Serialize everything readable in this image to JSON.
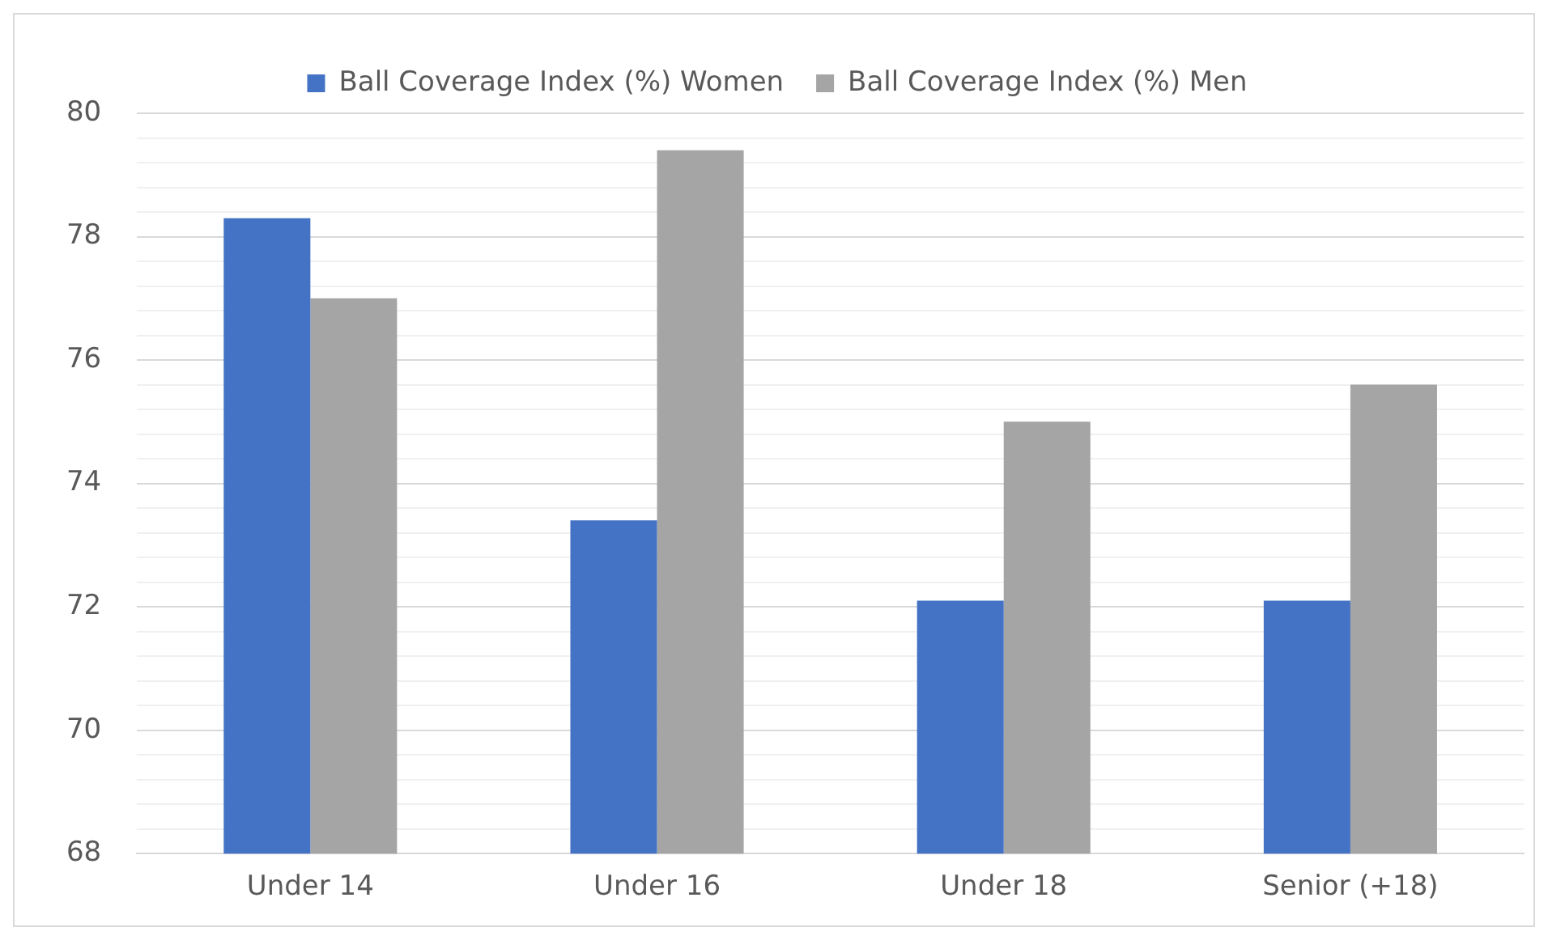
{
  "chart_data": {
    "type": "bar",
    "categories": [
      "Under 14",
      "Under 16",
      "Under 18",
      "Senior (+18)"
    ],
    "series": [
      {
        "name": "Ball Coverage Index (%) Women",
        "color": "#4472c4",
        "values": [
          78.3,
          73.4,
          72.1,
          72.1
        ]
      },
      {
        "name": "Ball Coverage Index (%) Men",
        "color": "#a5a5a5",
        "values": [
          77.0,
          79.4,
          75.0,
          75.6
        ]
      }
    ],
    "ylim": [
      68,
      80
    ],
    "yticks": [
      68,
      {
        "value": 68.4,
        "label": null
      },
      {
        "value": 68.8,
        "label": null
      },
      {
        "value": 69.2,
        "label": null
      },
      {
        "value": 69.6,
        "label": null
      },
      70,
      {
        "value": 70.4,
        "label": null
      },
      {
        "value": 70.8,
        "label": null
      },
      {
        "value": 71.2,
        "label": null
      },
      {
        "value": 71.6,
        "label": null
      },
      72,
      {
        "value": 72.4,
        "label": null
      },
      {
        "value": 72.8,
        "label": null
      },
      {
        "value": 73.2,
        "label": null
      },
      {
        "value": 73.6,
        "label": null
      },
      74,
      {
        "value": 74.4,
        "label": null
      },
      {
        "value": 74.8,
        "label": null
      },
      {
        "value": 75.2,
        "label": null
      },
      {
        "value": 75.6,
        "label": null
      },
      76,
      {
        "value": 76.4,
        "label": null
      },
      {
        "value": 76.8,
        "label": null
      },
      {
        "value": 77.2,
        "label": null
      },
      {
        "value": 77.6,
        "label": null
      },
      78,
      {
        "value": 78.4,
        "label": null
      },
      {
        "value": 78.8,
        "label": null
      },
      {
        "value": 79.2,
        "label": null
      },
      {
        "value": 79.6,
        "label": null
      },
      80
    ],
    "grid": "y",
    "legend": "top"
  }
}
